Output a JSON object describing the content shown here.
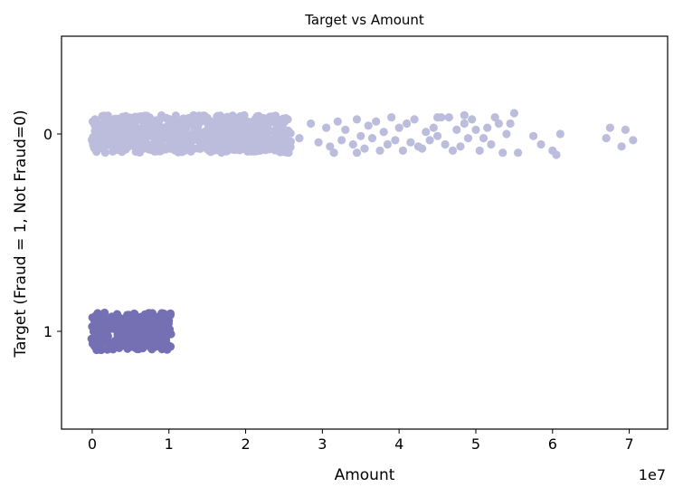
{
  "chart_data": {
    "type": "scatter",
    "title": "Target vs Amount",
    "xlabel": "Amount",
    "ylabel": "Target (Fraud = 1, Not Fraud=0)",
    "x_offset_label": "1e7",
    "x_ticks": [
      "0",
      "1",
      "2",
      "3",
      "4",
      "5",
      "6",
      "7"
    ],
    "xlim": [
      -0.4,
      7.5
    ],
    "y_categories": [
      "0",
      "1"
    ],
    "grid": false,
    "legend": "none",
    "series": [
      {
        "category": "0",
        "color": "#bcbddc",
        "dense_range": [
          0,
          2.6
        ],
        "sparse_points": [
          [
            2.7,
            0.02
          ],
          [
            2.85,
            -0.05
          ],
          [
            2.95,
            0.04
          ],
          [
            3.05,
            -0.03
          ],
          [
            3.1,
            0.06
          ],
          [
            3.2,
            -0.06
          ],
          [
            3.25,
            0.03
          ],
          [
            3.3,
            -0.02
          ],
          [
            3.4,
            0.05
          ],
          [
            3.45,
            -0.07
          ],
          [
            3.5,
            0.01
          ],
          [
            3.55,
            0.07
          ],
          [
            3.6,
            -0.04
          ],
          [
            3.65,
            0.02
          ],
          [
            3.7,
            -0.06
          ],
          [
            3.75,
            0.08
          ],
          [
            3.8,
            -0.01
          ],
          [
            3.85,
            0.05
          ],
          [
            3.9,
            -0.08
          ],
          [
            3.95,
            0.03
          ],
          [
            4.0,
            -0.03
          ],
          [
            4.05,
            0.08
          ],
          [
            4.1,
            -0.05
          ],
          [
            4.15,
            0.04
          ],
          [
            4.2,
            -0.07
          ],
          [
            4.25,
            0.06
          ],
          [
            4.35,
            -0.01
          ],
          [
            4.4,
            0.03
          ],
          [
            4.45,
            -0.03
          ],
          [
            4.5,
            0.01
          ],
          [
            4.55,
            -0.08
          ],
          [
            4.6,
            0.05
          ],
          [
            4.65,
            -0.08
          ],
          [
            4.7,
            0.08
          ],
          [
            4.75,
            -0.02
          ],
          [
            4.8,
            0.06
          ],
          [
            4.85,
            -0.05
          ],
          [
            4.9,
            0.02
          ],
          [
            4.95,
            -0.07
          ],
          [
            5.0,
            -0.02
          ],
          [
            5.05,
            0.08
          ],
          [
            5.1,
            0.02
          ],
          [
            5.15,
            -0.03
          ],
          [
            5.2,
            0.05
          ],
          [
            5.3,
            -0.05
          ],
          [
            5.35,
            0.09
          ],
          [
            5.4,
            0.0
          ],
          [
            5.45,
            -0.05
          ],
          [
            5.5,
            -0.1
          ],
          [
            5.55,
            0.09
          ],
          [
            5.75,
            0.01
          ],
          [
            5.85,
            0.05
          ],
          [
            6.0,
            0.08
          ],
          [
            6.1,
            0.0
          ],
          [
            6.05,
            0.1
          ],
          [
            6.7,
            0.02
          ],
          [
            6.75,
            -0.03
          ],
          [
            6.9,
            0.06
          ],
          [
            6.95,
            -0.02
          ],
          [
            7.05,
            0.03
          ],
          [
            4.85,
            -0.09
          ],
          [
            5.25,
            -0.08
          ],
          [
            3.15,
            0.09
          ],
          [
            3.45,
            0.09
          ],
          [
            4.3,
            0.07
          ],
          [
            4.5,
            -0.08
          ]
        ]
      },
      {
        "category": "1",
        "color": "#7570b3",
        "dense_range": [
          0,
          1.03
        ]
      }
    ]
  }
}
